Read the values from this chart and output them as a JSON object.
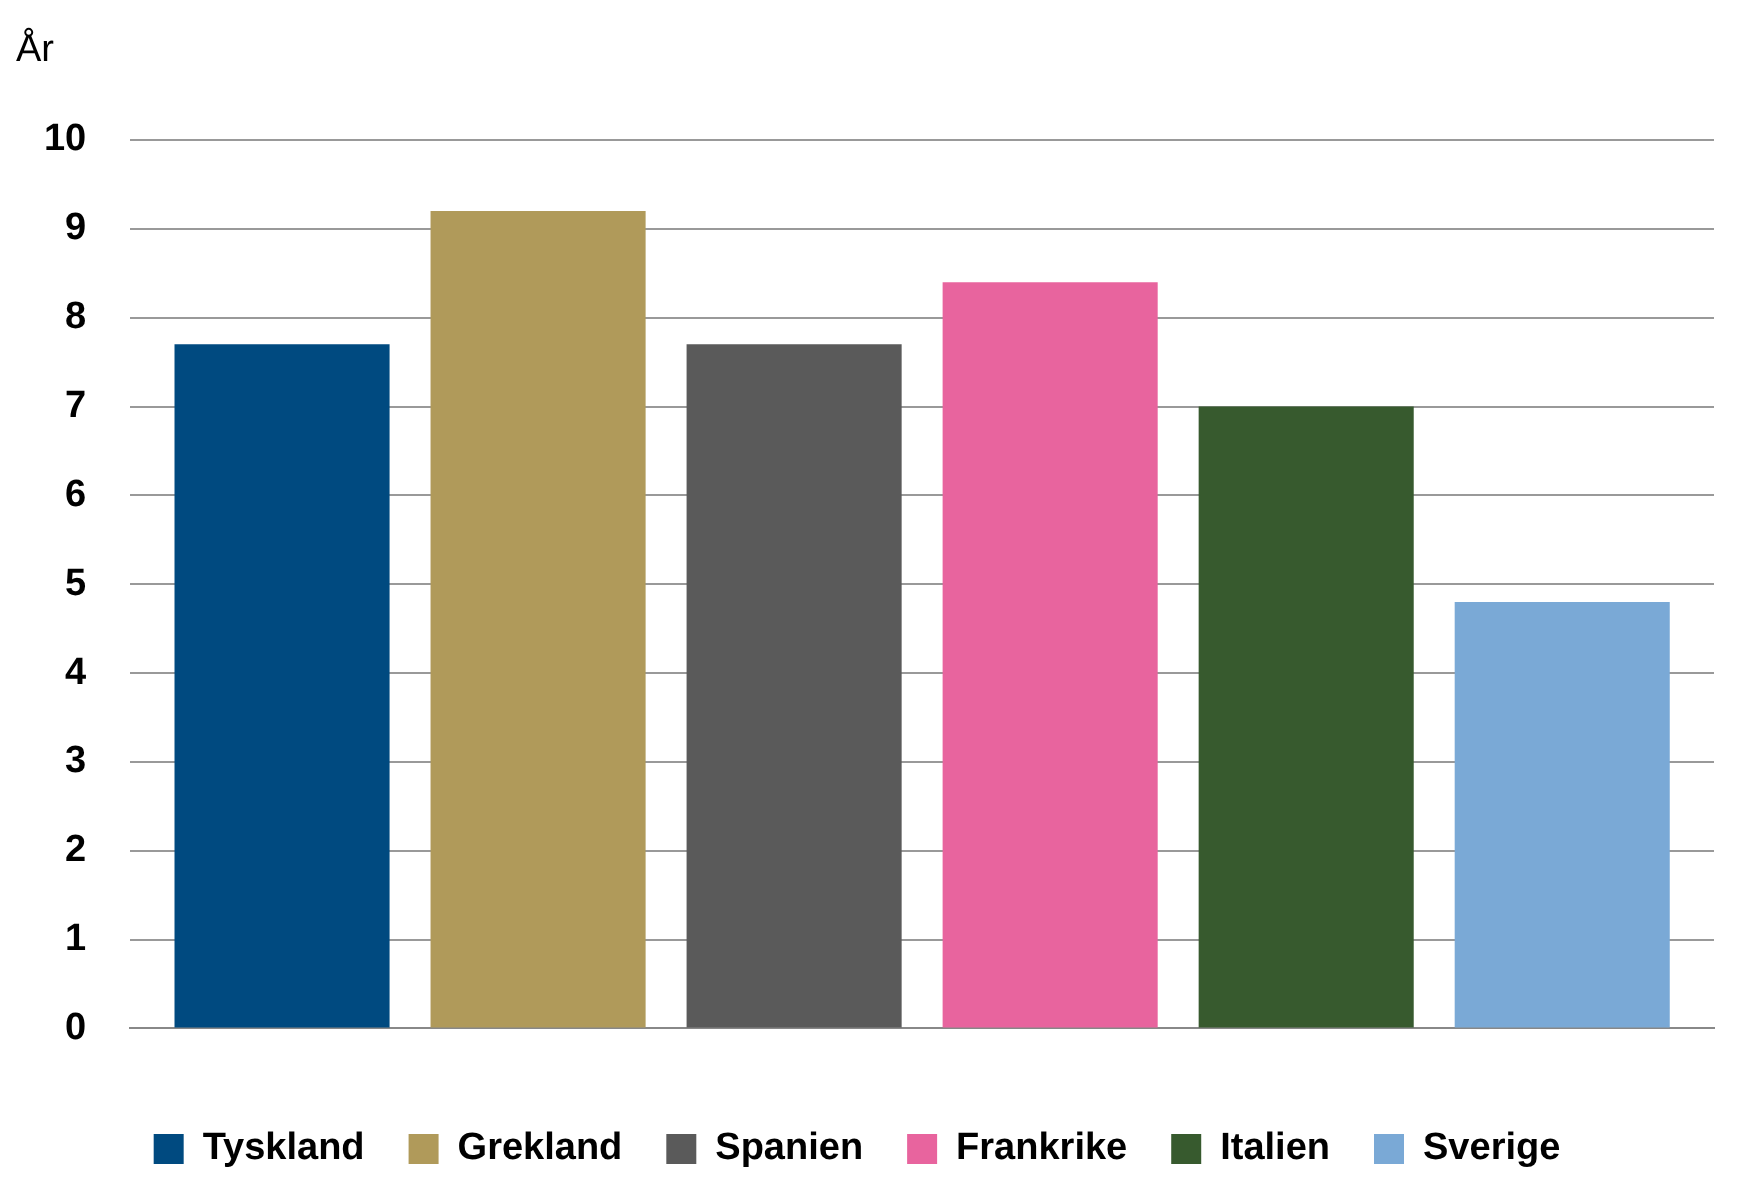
{
  "chart_data": {
    "type": "bar",
    "ylabel": "År",
    "categories": [
      null
    ],
    "series": [
      {
        "name": "Tyskland",
        "color": "#004a80",
        "values": [
          7.7
        ]
      },
      {
        "name": "Grekland",
        "color": "#b09a5a",
        "values": [
          9.2
        ]
      },
      {
        "name": "Spanien",
        "color": "#5a5a5a",
        "values": [
          7.7
        ]
      },
      {
        "name": "Frankrike",
        "color": "#e8649e",
        "values": [
          8.4
        ]
      },
      {
        "name": "Italien",
        "color": "#375a2e",
        "values": [
          7.0
        ]
      },
      {
        "name": "Sverige",
        "color": "#7aa9d6",
        "values": [
          4.8
        ]
      }
    ],
    "ylim": [
      0,
      10
    ],
    "yticks": [
      0,
      1,
      2,
      3,
      4,
      5,
      6,
      7,
      8,
      9,
      10
    ],
    "grid": "y",
    "legend": "bottom"
  }
}
